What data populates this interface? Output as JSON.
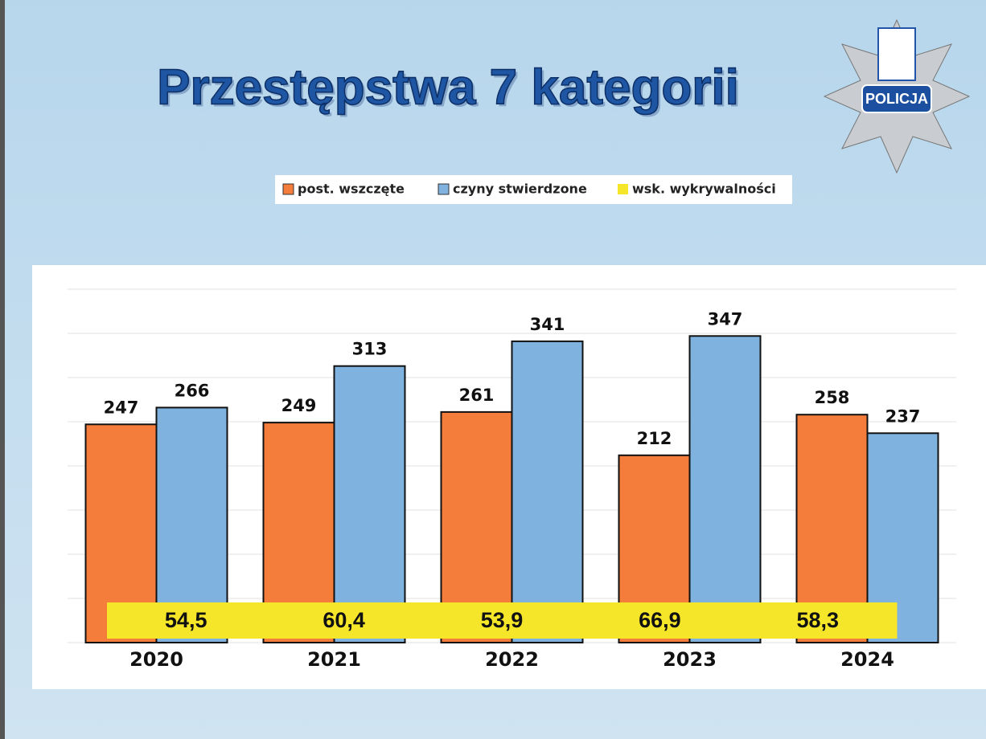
{
  "chart_data": {
    "type": "bar",
    "title": "Przestępstwa 7 kategorii",
    "categories": [
      "2020",
      "2021",
      "2022",
      "2023",
      "2024"
    ],
    "series": [
      {
        "name": "post. wszczęte",
        "color": "#f47d3c",
        "values": [
          247,
          249,
          261,
          212,
          258
        ]
      },
      {
        "name": "czyny stwierdzone",
        "color": "#7fb2de",
        "values": [
          266,
          313,
          341,
          347,
          237
        ]
      },
      {
        "name": "wsk. wykrywalności",
        "color": "#f5e62a",
        "values": [
          54.5,
          60.4,
          53.9,
          66.9,
          58.3
        ],
        "value_labels": [
          "54,5",
          "60,4",
          "53,9",
          "66,9",
          "58,3"
        ]
      }
    ],
    "ylim": [
      0,
      400
    ],
    "yticks": [
      0,
      50,
      100,
      150,
      200,
      250,
      300,
      350,
      400
    ],
    "grid": true,
    "legend": "top"
  },
  "logo": {
    "text": "POLICJA"
  }
}
